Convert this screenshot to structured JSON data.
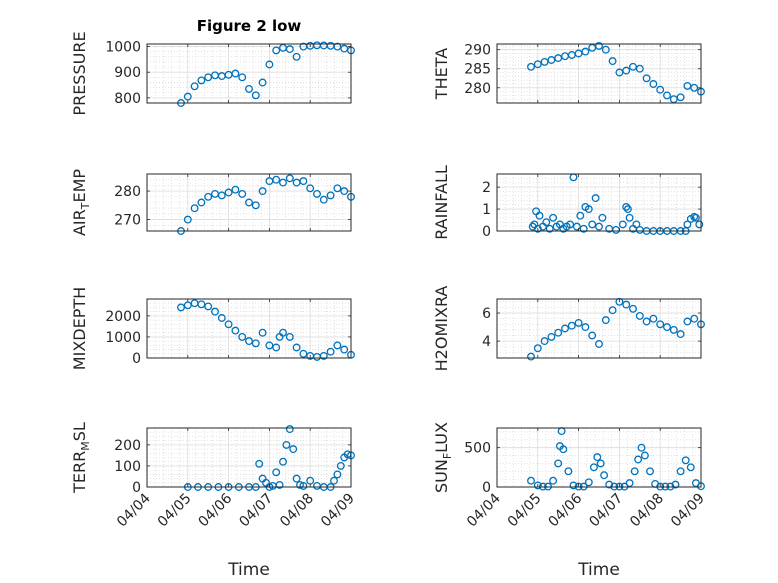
{
  "chart_data": {
    "type": "scatter",
    "title": "Figure 2 low",
    "xlabel": "Time",
    "x_ticks": [
      "04/04",
      "04/05",
      "04/06",
      "04/07",
      "04/08",
      "04/09"
    ],
    "x_range": [
      "04/04",
      "04/09"
    ],
    "marker": "open-circle",
    "marker_color": "#0072bd",
    "grid": true,
    "minor_grid": true,
    "panels": [
      {
        "ylabel": {
          "main": "PRESSURE",
          "sub": "",
          "tail": ""
        },
        "ylim": [
          780,
          1010
        ],
        "yticks": [
          800,
          900,
          1000
        ],
        "x": [
          "04/04 20:00",
          "04/05 00:00",
          "04/05 04:00",
          "04/05 08:00",
          "04/05 12:00",
          "04/05 16:00",
          "04/05 20:00",
          "04/06 00:00",
          "04/06 04:00",
          "04/06 08:00",
          "04/06 12:00",
          "04/06 16:00",
          "04/06 20:00",
          "04/07 00:00",
          "04/07 04:00",
          "04/07 08:00",
          "04/07 12:00",
          "04/07 16:00",
          "04/07 20:00",
          "04/08 00:00",
          "04/08 04:00",
          "04/08 08:00",
          "04/08 12:00",
          "04/08 16:00",
          "04/08 20:00",
          "04/09 00:00"
        ],
        "y": [
          780,
          805,
          845,
          868,
          880,
          888,
          885,
          890,
          895,
          880,
          835,
          810,
          860,
          930,
          985,
          995,
          990,
          960,
          1000,
          1003,
          1005,
          1004,
          1003,
          1000,
          992,
          985
        ]
      },
      {
        "ylabel": {
          "main": "THETA",
          "sub": "",
          "tail": ""
        },
        "ylim": [
          276,
          291.5
        ],
        "yticks": [
          280,
          285,
          290
        ],
        "x": [
          "04/04 20:00",
          "04/05 00:00",
          "04/05 04:00",
          "04/05 08:00",
          "04/05 12:00",
          "04/05 16:00",
          "04/05 20:00",
          "04/06 00:00",
          "04/06 04:00",
          "04/06 08:00",
          "04/06 12:00",
          "04/06 16:00",
          "04/06 20:00",
          "04/07 00:00",
          "04/07 04:00",
          "04/07 08:00",
          "04/07 12:00",
          "04/07 16:00",
          "04/07 20:00",
          "04/08 00:00",
          "04/08 04:00",
          "04/08 08:00",
          "04/08 12:00",
          "04/08 16:00",
          "04/08 20:00",
          "04/09 00:00"
        ],
        "y": [
          285.5,
          286.2,
          286.8,
          287.3,
          287.8,
          288.3,
          288.6,
          289.0,
          289.5,
          290.5,
          291.0,
          290.0,
          287.0,
          284.0,
          284.5,
          285.5,
          285.0,
          282.5,
          281.0,
          279.5,
          278.0,
          277.0,
          277.5,
          280.5,
          280.0,
          279.0
        ]
      },
      {
        "ylabel": {
          "main": "AIR",
          "sub": "T",
          "tail": "EMP"
        },
        "ylim": [
          266,
          286
        ],
        "yticks": [
          270,
          280
        ],
        "x": [
          "04/04 20:00",
          "04/05 00:00",
          "04/05 04:00",
          "04/05 08:00",
          "04/05 12:00",
          "04/05 16:00",
          "04/05 20:00",
          "04/06 00:00",
          "04/06 04:00",
          "04/06 08:00",
          "04/06 12:00",
          "04/06 16:00",
          "04/06 20:00",
          "04/07 00:00",
          "04/07 04:00",
          "04/07 08:00",
          "04/07 12:00",
          "04/07 16:00",
          "04/07 20:00",
          "04/08 00:00",
          "04/08 04:00",
          "04/08 08:00",
          "04/08 12:00",
          "04/08 16:00",
          "04/08 20:00",
          "04/09 00:00"
        ],
        "y": [
          266,
          270,
          274,
          276,
          278,
          279,
          278.5,
          279.5,
          280.5,
          279,
          276,
          275,
          280,
          283.5,
          284,
          283,
          284.5,
          283,
          283.5,
          281,
          279,
          277,
          278.5,
          281,
          280,
          278
        ]
      },
      {
        "ylabel": {
          "main": "RAINFALL",
          "sub": "",
          "tail": ""
        },
        "ylim": [
          0,
          2.6
        ],
        "yticks": [
          0,
          1,
          2
        ],
        "x": [
          "04/04 21:00",
          "04/04 22:00",
          "04/04 23:00",
          "04/05 00:00",
          "04/05 01:00",
          "04/05 03:00",
          "04/05 05:00",
          "04/05 07:00",
          "04/05 09:00",
          "04/05 11:00",
          "04/05 13:00",
          "04/05 15:00",
          "04/05 17:00",
          "04/05 19:00",
          "04/05 21:00",
          "04/05 23:00",
          "04/06 01:00",
          "04/06 03:00",
          "04/06 04:00",
          "04/06 06:00",
          "04/06 08:00",
          "04/06 10:00",
          "04/06 12:00",
          "04/06 14:00",
          "04/06 18:00",
          "04/06 22:00",
          "04/07 02:00",
          "04/07 04:00",
          "04/07 05:00",
          "04/07 06:00",
          "04/07 08:00",
          "04/07 10:00",
          "04/07 12:00",
          "04/07 16:00",
          "04/07 20:00",
          "04/08 00:00",
          "04/08 04:00",
          "04/08 08:00",
          "04/08 12:00",
          "04/08 15:00",
          "04/08 16:00",
          "04/08 18:00",
          "04/08 20:00",
          "04/08 21:00",
          "04/08 23:00"
        ],
        "y": [
          0.2,
          0.3,
          0.9,
          0.1,
          0.7,
          0.2,
          0.4,
          0.1,
          0.6,
          0.2,
          0.3,
          0.1,
          0.2,
          0.3,
          2.45,
          0.2,
          0.7,
          0.1,
          1.1,
          1.0,
          0.3,
          1.5,
          0.2,
          0.6,
          0.1,
          0.05,
          0.3,
          1.1,
          1.0,
          0.6,
          0.1,
          0.3,
          0.05,
          0.0,
          0.0,
          0.0,
          0.0,
          0.0,
          0.0,
          0.0,
          0.3,
          0.55,
          0.65,
          0.6,
          0.3
        ]
      },
      {
        "ylabel": {
          "main": "MIXDEPTH",
          "sub": "",
          "tail": ""
        },
        "ylim": [
          0,
          2800
        ],
        "yticks": [
          0,
          1000,
          2000
        ],
        "x": [
          "04/04 20:00",
          "04/05 00:00",
          "04/05 04:00",
          "04/05 08:00",
          "04/05 12:00",
          "04/05 16:00",
          "04/05 20:00",
          "04/06 00:00",
          "04/06 04:00",
          "04/06 08:00",
          "04/06 12:00",
          "04/06 16:00",
          "04/06 20:00",
          "04/07 00:00",
          "04/07 04:00",
          "04/07 06:00",
          "04/07 08:00",
          "04/07 12:00",
          "04/07 16:00",
          "04/07 20:00",
          "04/08 00:00",
          "04/08 04:00",
          "04/08 08:00",
          "04/08 12:00",
          "04/08 16:00",
          "04/08 20:00",
          "04/09 00:00"
        ],
        "y": [
          2400,
          2500,
          2600,
          2550,
          2450,
          2200,
          1900,
          1600,
          1300,
          1000,
          800,
          700,
          1200,
          600,
          500,
          1000,
          1200,
          1000,
          500,
          200,
          100,
          50,
          100,
          300,
          600,
          400,
          150
        ]
      },
      {
        "ylabel": {
          "main": "H2OMIXRA",
          "sub": "",
          "tail": ""
        },
        "ylim": [
          2.8,
          7
        ],
        "yticks": [
          4,
          6
        ],
        "x": [
          "04/04 20:00",
          "04/05 00:00",
          "04/05 04:00",
          "04/05 08:00",
          "04/05 12:00",
          "04/05 16:00",
          "04/05 20:00",
          "04/06 00:00",
          "04/06 04:00",
          "04/06 08:00",
          "04/06 12:00",
          "04/06 16:00",
          "04/06 20:00",
          "04/07 00:00",
          "04/07 04:00",
          "04/07 08:00",
          "04/07 12:00",
          "04/07 16:00",
          "04/07 20:00",
          "04/08 00:00",
          "04/08 04:00",
          "04/08 08:00",
          "04/08 12:00",
          "04/08 16:00",
          "04/08 20:00",
          "04/09 00:00"
        ],
        "y": [
          2.9,
          3.5,
          4.0,
          4.3,
          4.6,
          4.9,
          5.1,
          5.3,
          5.0,
          4.4,
          3.8,
          5.5,
          6.2,
          6.8,
          6.6,
          6.3,
          5.8,
          5.4,
          5.6,
          5.2,
          5.0,
          4.8,
          4.5,
          5.4,
          5.6,
          5.2
        ]
      },
      {
        "ylabel": {
          "main": "TERR",
          "sub": "M",
          "tail": "SL"
        },
        "ylim": [
          0,
          280
        ],
        "yticks": [
          0,
          100,
          200
        ],
        "x": [
          "04/05 00:00",
          "04/05 06:00",
          "04/05 12:00",
          "04/05 18:00",
          "04/06 00:00",
          "04/06 06:00",
          "04/06 12:00",
          "04/06 16:00",
          "04/06 18:00",
          "04/06 20:00",
          "04/06 22:00",
          "04/07 00:00",
          "04/07 02:00",
          "04/07 04:00",
          "04/07 06:00",
          "04/07 08:00",
          "04/07 10:00",
          "04/07 12:00",
          "04/07 14:00",
          "04/07 16:00",
          "04/07 18:00",
          "04/07 20:00",
          "04/08 00:00",
          "04/08 04:00",
          "04/08 08:00",
          "04/08 12:00",
          "04/08 14:00",
          "04/08 16:00",
          "04/08 18:00",
          "04/08 20:00",
          "04/08 22:00",
          "04/09 00:00"
        ],
        "y": [
          0,
          0,
          0,
          0,
          0,
          0,
          0,
          0,
          110,
          40,
          20,
          0,
          5,
          70,
          10,
          120,
          200,
          275,
          180,
          40,
          10,
          5,
          30,
          5,
          0,
          0,
          30,
          60,
          100,
          140,
          155,
          150
        ]
      },
      {
        "ylabel": {
          "main": "SUN",
          "sub": "F",
          "tail": "LUX"
        },
        "ylim": [
          0,
          750
        ],
        "yticks": [
          0,
          500
        ],
        "x": [
          "04/04 20:00",
          "04/05 00:00",
          "04/05 03:00",
          "04/05 06:00",
          "04/05 09:00",
          "04/05 12:00",
          "04/05 13:00",
          "04/05 14:00",
          "04/05 15:00",
          "04/05 18:00",
          "04/05 21:00",
          "04/06 00:00",
          "04/06 03:00",
          "04/06 06:00",
          "04/06 09:00",
          "04/06 11:00",
          "04/06 13:00",
          "04/06 15:00",
          "04/06 18:00",
          "04/06 21:00",
          "04/07 00:00",
          "04/07 03:00",
          "04/07 06:00",
          "04/07 09:00",
          "04/07 11:00",
          "04/07 13:00",
          "04/07 15:00",
          "04/07 18:00",
          "04/07 21:00",
          "04/08 00:00",
          "04/08 03:00",
          "04/08 06:00",
          "04/08 09:00",
          "04/08 12:00",
          "04/08 15:00",
          "04/08 18:00",
          "04/08 21:00",
          "04/09 00:00"
        ],
        "y": [
          80,
          20,
          5,
          5,
          80,
          300,
          520,
          710,
          480,
          200,
          20,
          5,
          5,
          60,
          250,
          380,
          300,
          150,
          30,
          5,
          5,
          5,
          50,
          200,
          350,
          500,
          400,
          200,
          40,
          5,
          5,
          5,
          30,
          200,
          340,
          250,
          50,
          10
        ]
      }
    ]
  }
}
